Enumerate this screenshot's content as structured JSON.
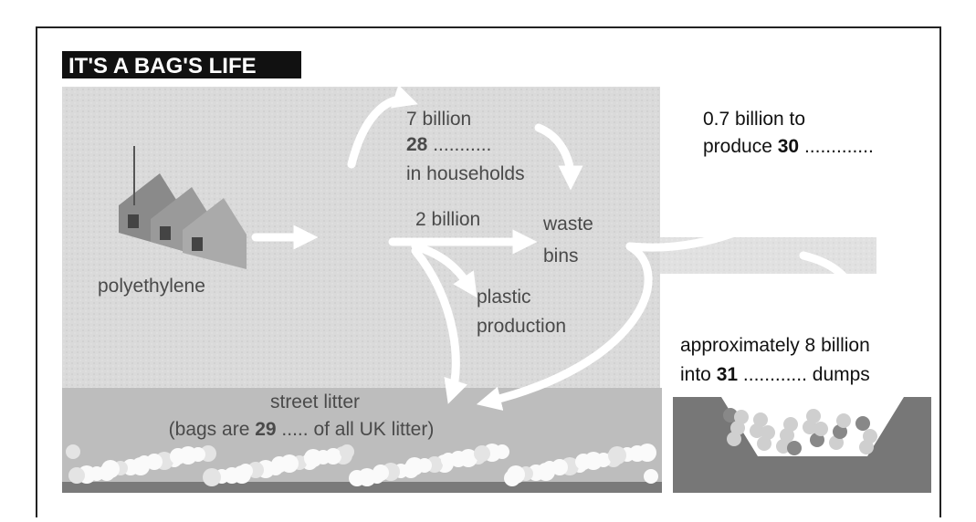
{
  "title": "IT'S A BAG'S LIFE",
  "nodes": {
    "polyethylene": {
      "label": "polyethylene"
    },
    "households": {
      "amount": "7 billion",
      "number": "28",
      "blank": "...........",
      "label": "in households"
    },
    "waste_bins": {
      "amount": "2 billion",
      "label_1": "waste",
      "label_2": "bins"
    },
    "plastic_production": {
      "label_1": "plastic",
      "label_2": "production"
    },
    "produce": {
      "line_1": "0.7 billion to",
      "prefix": "produce",
      "number": "30",
      "blank": "............."
    },
    "dumps": {
      "line_1": "approximately 8 billion",
      "prefix": "into",
      "number": "31",
      "blank": "............",
      "suffix": "dumps"
    },
    "street_litter": {
      "label": "street litter",
      "prefix": "(bags are",
      "number": "29",
      "blank": ".....",
      "suffix": "of all UK litter)"
    }
  }
}
